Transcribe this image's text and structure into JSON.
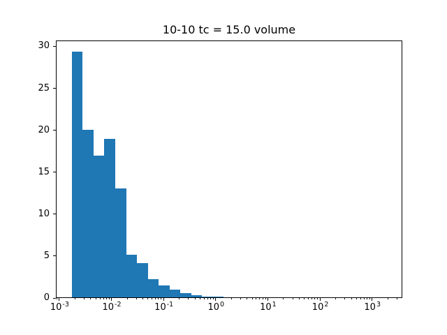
{
  "title": "10-10 tc = 15.0 volume",
  "colors": {
    "bar": "#1f77b4",
    "spine": "#000000",
    "background": "#ffffff"
  },
  "chart_data": {
    "type": "bar",
    "subtype": "histogram",
    "title": "10-10 tc = 15.0 volume",
    "xlabel": "",
    "ylabel": "",
    "xscale": "log",
    "grid": false,
    "legend": null,
    "xlim": [
      0.00086,
      3800
    ],
    "ylim": [
      0,
      30.7
    ],
    "yticks": [
      0,
      5,
      10,
      15,
      20,
      25,
      30
    ],
    "xtick_exponents": [
      -3,
      -2,
      -1,
      0,
      1,
      2,
      3
    ],
    "xtick_base": "10",
    "bin_edges": [
      0.0017,
      0.0027,
      0.0044,
      0.0071,
      0.0115,
      0.0186,
      0.03,
      0.0485,
      0.0783,
      0.1265,
      0.2043,
      0.33,
      0.533,
      0.861,
      1.39
    ],
    "values": [
      29.3,
      19.95,
      16.9,
      18.85,
      13.0,
      5.1,
      4.05,
      2.15,
      1.4,
      0.95,
      0.46,
      0.23,
      0.11,
      0.06
    ],
    "bar_color": "#1f77b4"
  }
}
